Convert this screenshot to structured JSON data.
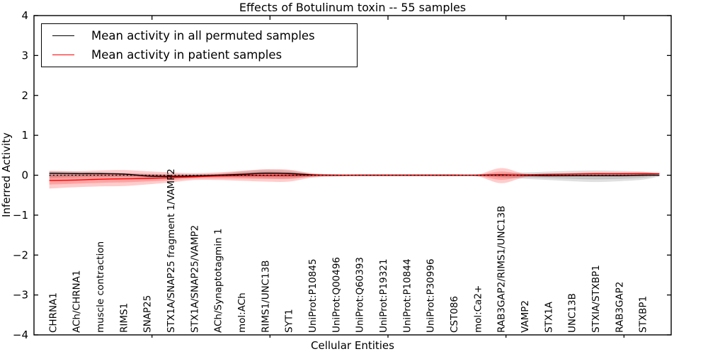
{
  "title": "Effects of Botulinum toxin -- 55 samples",
  "legend": {
    "items": [
      {
        "label": "Mean activity in all permuted samples",
        "color": "#000000"
      },
      {
        "label": "Mean activity in patient samples",
        "color": "#ff0000"
      }
    ]
  },
  "chart_data": {
    "type": "line",
    "title": "Effects of Botulinum toxin -- 55 samples",
    "xlabel": "Cellular Entities",
    "ylabel": "Inferred Activity",
    "ylim": [
      -4,
      4
    ],
    "xlim": [
      0,
      27
    ],
    "y_ticks": [
      -4,
      -3,
      -2,
      -1,
      0,
      1,
      2,
      3,
      4
    ],
    "x_numeric_ticks": [
      5,
      10,
      15,
      20,
      25
    ],
    "category_offset": 0.8,
    "categories": [
      "CHRNA1",
      "ACh/CHRNA1",
      "muscle contraction",
      "RIMS1",
      "SNAP25",
      "STX1A/SNAP25 fragment 1/VAMP2",
      "STX1A/SNAP25/VAMP2",
      "ACh/Synaptotagmin 1",
      "mol:ACh",
      "RIMS1/UNC13B",
      "SYT1",
      "UniProt:P10845",
      "UniProt:Q00496",
      "UniProt:Q60393",
      "UniProt:P19321",
      "UniProt:P10844",
      "UniProt:P30996",
      "CST086",
      "mol:Ca2+",
      "RAB3GAP2/RIMS1/UNC13B",
      "VAMP2",
      "STX1A",
      "UNC13B",
      "STXIA/STXBP1",
      "RAB3GAP2",
      "STXBP1"
    ],
    "x": [
      0.65,
      0.8,
      1.8,
      2.8,
      3.8,
      4.8,
      5.8,
      6.8,
      7.8,
      8.8,
      9.8,
      10.8,
      11.8,
      12.8,
      13.8,
      14.8,
      15.8,
      16.8,
      17.8,
      18.8,
      19.8,
      20.8,
      21.8,
      22.8,
      23.8,
      24.8,
      25.8,
      26.5
    ],
    "series": [
      {
        "name": "Mean activity in all permuted samples",
        "color": "#000000",
        "values": [
          0.05,
          0.05,
          0.04,
          0.04,
          0.03,
          -0.02,
          -0.03,
          -0.02,
          0.0,
          0.02,
          0.05,
          0.04,
          0.01,
          0.0,
          0.0,
          0.0,
          0.0,
          0.0,
          0.0,
          0.0,
          0.01,
          0.0,
          -0.01,
          -0.01,
          -0.01,
          -0.01,
          0.0,
          0.0
        ]
      },
      {
        "name": "Mean activity in patient samples",
        "color": "#ff0000",
        "values": [
          -0.13,
          -0.13,
          -0.12,
          -0.1,
          -0.09,
          -0.08,
          -0.06,
          -0.04,
          -0.02,
          -0.01,
          -0.01,
          -0.01,
          0.0,
          0.0,
          0.0,
          0.0,
          0.0,
          0.0,
          0.0,
          0.0,
          0.0,
          0.01,
          0.02,
          0.03,
          0.04,
          0.04,
          0.04,
          0.04
        ]
      }
    ],
    "bands": [
      {
        "name": "permuted-samples-band",
        "color": "#000000",
        "opacity": 0.12,
        "hi": [
          0.1,
          0.1,
          0.09,
          0.07,
          0.06,
          0.04,
          0.03,
          0.03,
          0.04,
          0.1,
          0.14,
          0.12,
          0.04,
          0.02,
          0.02,
          0.02,
          0.02,
          0.02,
          0.02,
          0.02,
          0.05,
          0.07,
          0.09,
          0.11,
          0.12,
          0.11,
          0.09,
          0.03
        ],
        "lo": [
          -0.08,
          -0.08,
          -0.06,
          -0.05,
          -0.04,
          -0.06,
          -0.07,
          -0.06,
          -0.04,
          -0.06,
          -0.08,
          -0.08,
          -0.04,
          -0.02,
          -0.02,
          -0.02,
          -0.02,
          -0.02,
          -0.02,
          -0.02,
          -0.06,
          -0.09,
          -0.12,
          -0.15,
          -0.17,
          -0.15,
          -0.11,
          -0.03
        ]
      },
      {
        "name": "patient-samples-band",
        "color": "#ff0000",
        "opacity": 0.2,
        "hi": [
          0.11,
          0.11,
          0.1,
          0.12,
          0.13,
          0.1,
          0.07,
          0.05,
          0.07,
          0.11,
          0.15,
          0.14,
          0.05,
          0.02,
          0.02,
          0.02,
          0.02,
          0.02,
          0.02,
          0.02,
          0.18,
          0.04,
          0.04,
          0.05,
          0.06,
          0.06,
          0.07,
          0.05
        ],
        "lo": [
          -0.33,
          -0.33,
          -0.3,
          -0.28,
          -0.27,
          -0.23,
          -0.18,
          -0.12,
          -0.12,
          -0.14,
          -0.16,
          -0.16,
          -0.06,
          -0.03,
          -0.02,
          -0.02,
          -0.02,
          -0.02,
          -0.02,
          -0.03,
          -0.2,
          -0.05,
          -0.04,
          -0.03,
          -0.03,
          -0.03,
          -0.02,
          0.02
        ]
      }
    ],
    "zero_line": {
      "y": 0,
      "style": "dotted",
      "color": "#000000"
    },
    "legend_position": "upper left",
    "grid": false
  }
}
